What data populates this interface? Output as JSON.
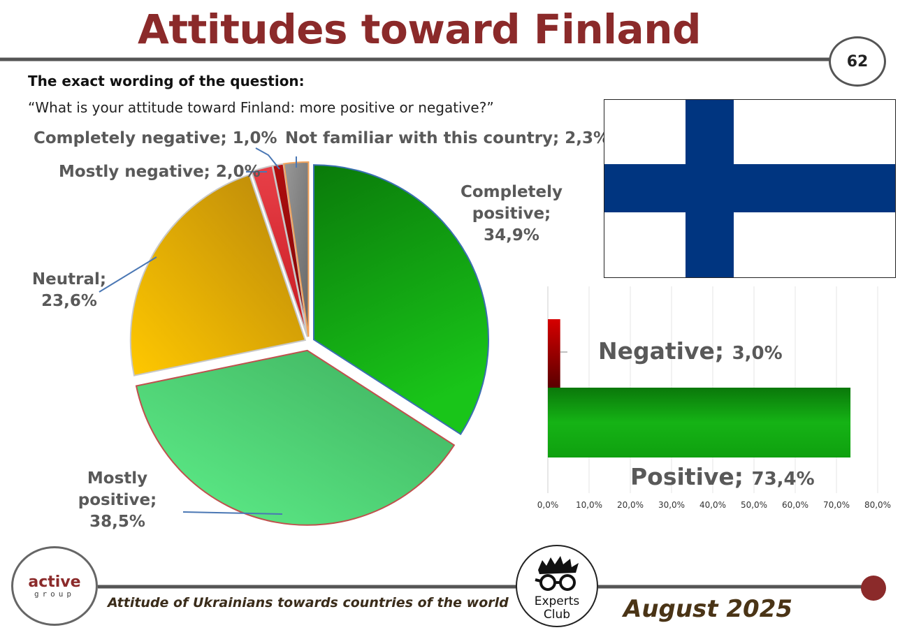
{
  "header": {
    "title": "Attitudes toward Finland",
    "page_number": "62"
  },
  "question": {
    "label": "The exact wording of the question:",
    "text": "“What is your attitude toward Finland: more positive or negative?”"
  },
  "pie_labels": {
    "completely_positive": [
      "Completely",
      "positive; 34,9%"
    ],
    "mostly_positive": [
      "Mostly",
      "positive;",
      "38,5%"
    ],
    "neutral": [
      "Neutral;",
      "23,6%"
    ],
    "mostly_negative": "Mostly negative; 2,0%",
    "completely_negative": "Completely negative; 1,0%",
    "not_familiar": "Not familiar with this country; 2,3%"
  },
  "bar_labels": {
    "negative_name": "Negative;",
    "negative_value": "3,0%",
    "positive_name": "Positive;",
    "positive_value": "73,4%"
  },
  "footer": {
    "caption": "Attitude of Ukrainians towards countries of the world",
    "date": "August 2025",
    "logo_left_word": "active",
    "logo_left_sub": "group",
    "logo_right_words": [
      "Experts",
      "Club"
    ]
  },
  "colors": {
    "title": "#8b2a2a",
    "completely_positive": "#13a813",
    "mostly_positive": "#4ed77a",
    "neutral": "#e3a70c",
    "mostly_negative": "#e0333b",
    "completely_negative": "#9e0a0a",
    "not_familiar": "#808080",
    "finland_blue": "#003580"
  },
  "chart_data": [
    {
      "type": "pie",
      "categories": [
        "Completely positive",
        "Mostly positive",
        "Neutral",
        "Mostly negative",
        "Completely negative",
        "Not familiar with this country"
      ],
      "values": [
        34.9,
        38.5,
        23.6,
        2.0,
        1.0,
        2.3
      ],
      "unit": "%",
      "exploded": true
    },
    {
      "type": "bar",
      "orientation": "horizontal",
      "categories": [
        "Negative",
        "Positive"
      ],
      "values": [
        3.0,
        73.4
      ],
      "unit": "%",
      "xlim": [
        0,
        80
      ],
      "xticks": [
        "0,0%",
        "10,0%",
        "20,0%",
        "30,0%",
        "40,0%",
        "50,0%",
        "60,0%",
        "70,0%",
        "80,0%"
      ],
      "grid": true
    }
  ]
}
